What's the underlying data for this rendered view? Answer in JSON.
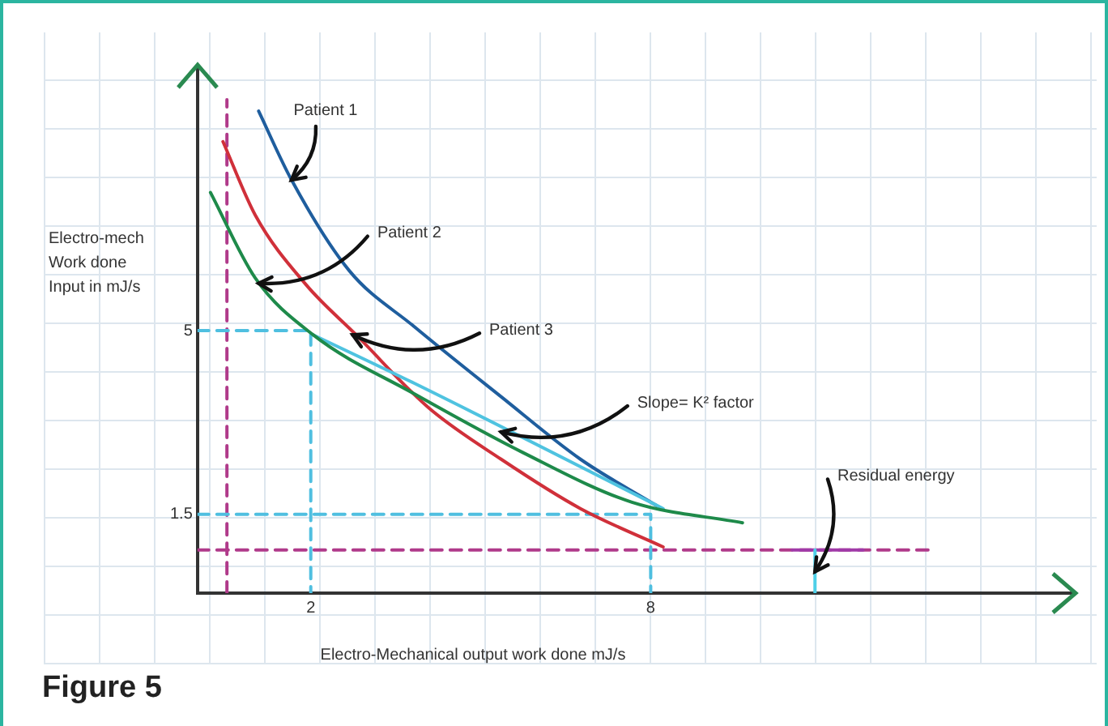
{
  "chart_data": {
    "type": "line",
    "title": "Figure 5",
    "xlabel": "Electro-Mechanical output work done  mJ/s",
    "ylabel": "Electro-mech\nWork done\nInput in mJ/s",
    "xlim": [
      0,
      15.5
    ],
    "ylim": [
      0,
      10
    ],
    "xticks": [
      2,
      8
    ],
    "yticks": [
      1.5,
      5
    ],
    "grid": false,
    "legend": false,
    "marker": "none",
    "series": [
      {
        "color": "#b03a8a",
        "line_style": "dashed",
        "x": [
          0.52,
          0.52
        ],
        "values": [
          0,
          9.4
        ]
      },
      {
        "color": "#b03a8a",
        "line_style": "dashed",
        "x": [
          0,
          13.0
        ],
        "values": [
          0.82,
          0.82
        ]
      },
      {
        "color": "#4fbfe0",
        "line_style": "dashed",
        "x": [
          0,
          2,
          2
        ],
        "values": [
          5,
          5,
          0
        ]
      },
      {
        "color": "#4fbfe0",
        "line_style": "dashed",
        "x": [
          0,
          8,
          8
        ],
        "values": [
          1.5,
          1.5,
          0
        ]
      },
      {
        "color": "#a03aa8",
        "line_style": "solid",
        "x": [
          10.5,
          11.75
        ],
        "values": [
          0.82,
          0.82
        ]
      },
      {
        "color": "#4fd0e8",
        "line_style": "solid",
        "x": [
          10.9,
          10.9
        ],
        "values": [
          0,
          0.82
        ]
      },
      {
        "color": "#1f5e9e",
        "line_style": "solid",
        "x": [
          1.08,
          1.66,
          2.68,
          3.82,
          5.36,
          6.76,
          8.1
        ],
        "values": [
          9.18,
          7.87,
          6.14,
          5.08,
          3.74,
          2.55,
          1.67
        ]
      },
      {
        "color": "#d0303a",
        "line_style": "solid",
        "x": [
          0.45,
          1.02,
          1.92,
          2.8,
          4.08,
          5.36,
          6.76,
          8.22
        ],
        "values": [
          8.6,
          7.2,
          5.87,
          4.92,
          3.53,
          2.55,
          1.61,
          0.88
        ]
      },
      {
        "color": "#4fc3e0",
        "line_style": "solid",
        "x": [
          2.04,
          3.82,
          8.22
        ],
        "values": [
          4.92,
          4.0,
          1.61
        ]
      },
      {
        "color": "#1e8a4a",
        "line_style": "solid",
        "x": [
          0.23,
          1.02,
          2.04,
          3.82,
          5.74,
          7.67,
          9.62
        ],
        "values": [
          7.63,
          6.0,
          4.92,
          3.8,
          2.68,
          1.73,
          1.34
        ]
      }
    ],
    "annotations": [
      {
        "text": "Patient 1",
        "x": 1.66,
        "y": 7.87
      },
      {
        "text": "Patient 2",
        "x": 1.08,
        "y": 5.9
      },
      {
        "text": "Patient 3",
        "x": 2.74,
        "y": 4.92
      },
      {
        "text": "Slope= K² factor",
        "x": 5.36,
        "y": 3.07
      },
      {
        "text": "Residual energy",
        "x": 10.9,
        "y": 0.41
      }
    ]
  }
}
